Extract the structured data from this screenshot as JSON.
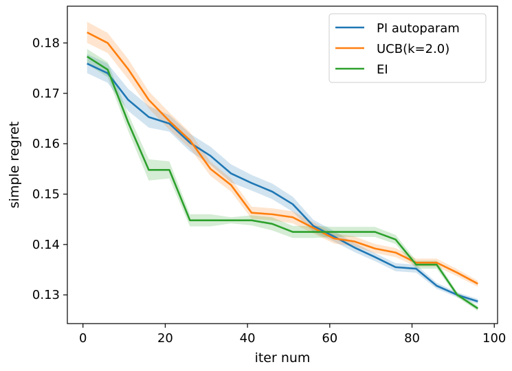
{
  "chart_data": {
    "type": "line",
    "xlabel": "iter num",
    "ylabel": "simple regret",
    "xlim": [
      -3.8,
      100.8
    ],
    "ylim": [
      0.1243,
      0.1873
    ],
    "xticks": [
      0,
      20,
      40,
      60,
      80,
      100
    ],
    "yticks": [
      0.13,
      0.14,
      0.15,
      0.16,
      0.17,
      0.18
    ],
    "ytick_labels": [
      "0.13",
      "0.14",
      "0.15",
      "0.16",
      "0.17",
      "0.18"
    ],
    "grid": false,
    "legend_position": "top-right",
    "series": [
      {
        "name": "PI autoparam",
        "color": "#1f77b4",
        "x": [
          1,
          6,
          11,
          16,
          21,
          26,
          31,
          36,
          41,
          46,
          51,
          56,
          61,
          66,
          71,
          76,
          81,
          86,
          91,
          96
        ],
        "y": [
          0.1759,
          0.174,
          0.1687,
          0.1653,
          0.164,
          0.1602,
          0.1576,
          0.1541,
          0.1522,
          0.1505,
          0.148,
          0.1437,
          0.1416,
          0.1394,
          0.1375,
          0.1355,
          0.1352,
          0.1318,
          0.13,
          0.1287
        ],
        "lower": [
          0.174,
          0.1721,
          0.1665,
          0.1632,
          0.1624,
          0.1585,
          0.1558,
          0.1523,
          0.1507,
          0.149,
          0.1465,
          0.1425,
          0.1406,
          0.1385,
          0.1367,
          0.1347,
          0.1344,
          0.1312,
          0.1295,
          0.1282
        ],
        "upper": [
          0.1778,
          0.1759,
          0.1709,
          0.1675,
          0.1657,
          0.162,
          0.1594,
          0.1559,
          0.1538,
          0.1521,
          0.1495,
          0.1449,
          0.1427,
          0.1403,
          0.1383,
          0.1363,
          0.136,
          0.1324,
          0.1305,
          0.1292
        ]
      },
      {
        "name": "UCB(k=2.0)",
        "color": "#ff7f0e",
        "x": [
          1,
          6,
          11,
          16,
          21,
          26,
          31,
          36,
          41,
          46,
          51,
          56,
          61,
          66,
          71,
          76,
          81,
          86,
          91,
          96
        ],
        "y": [
          0.1821,
          0.18,
          0.1748,
          0.1687,
          0.1645,
          0.1607,
          0.155,
          0.1518,
          0.1463,
          0.146,
          0.1454,
          0.1433,
          0.1412,
          0.1406,
          0.1392,
          0.1384,
          0.1364,
          0.1364,
          0.1344,
          0.1322
        ],
        "lower": [
          0.18,
          0.178,
          0.1728,
          0.167,
          0.1628,
          0.1591,
          0.1536,
          0.1505,
          0.1451,
          0.1448,
          0.1442,
          0.1422,
          0.1402,
          0.1396,
          0.1383,
          0.1375,
          0.1356,
          0.1356,
          0.1337,
          0.1316
        ],
        "upper": [
          0.1842,
          0.182,
          0.1768,
          0.1704,
          0.1662,
          0.1623,
          0.1564,
          0.1531,
          0.1475,
          0.1472,
          0.1466,
          0.1444,
          0.1422,
          0.1416,
          0.1401,
          0.1393,
          0.1372,
          0.1372,
          0.1351,
          0.1328
        ]
      },
      {
        "name": "EI",
        "color": "#2ca02c",
        "x": [
          1,
          6,
          11,
          16,
          21,
          26,
          31,
          36,
          41,
          46,
          51,
          56,
          61,
          66,
          71,
          76,
          81,
          86,
          91,
          96
        ],
        "y": [
          0.1773,
          0.1747,
          0.1642,
          0.1548,
          0.1548,
          0.1448,
          0.1448,
          0.1448,
          0.1448,
          0.1441,
          0.1425,
          0.1425,
          0.1425,
          0.1425,
          0.1425,
          0.141,
          0.136,
          0.136,
          0.13,
          0.1273
        ],
        "lower": [
          0.1758,
          0.1732,
          0.1625,
          0.1527,
          0.1531,
          0.1436,
          0.1436,
          0.1442,
          0.1438,
          0.1428,
          0.1413,
          0.1413,
          0.1415,
          0.1415,
          0.1415,
          0.1401,
          0.1352,
          0.1352,
          0.1295,
          0.1268
        ],
        "upper": [
          0.1788,
          0.1762,
          0.1659,
          0.1569,
          0.1565,
          0.146,
          0.146,
          0.1454,
          0.1458,
          0.1454,
          0.1437,
          0.1437,
          0.1435,
          0.1435,
          0.1435,
          0.1419,
          0.1368,
          0.1368,
          0.1305,
          0.1278
        ]
      }
    ]
  }
}
